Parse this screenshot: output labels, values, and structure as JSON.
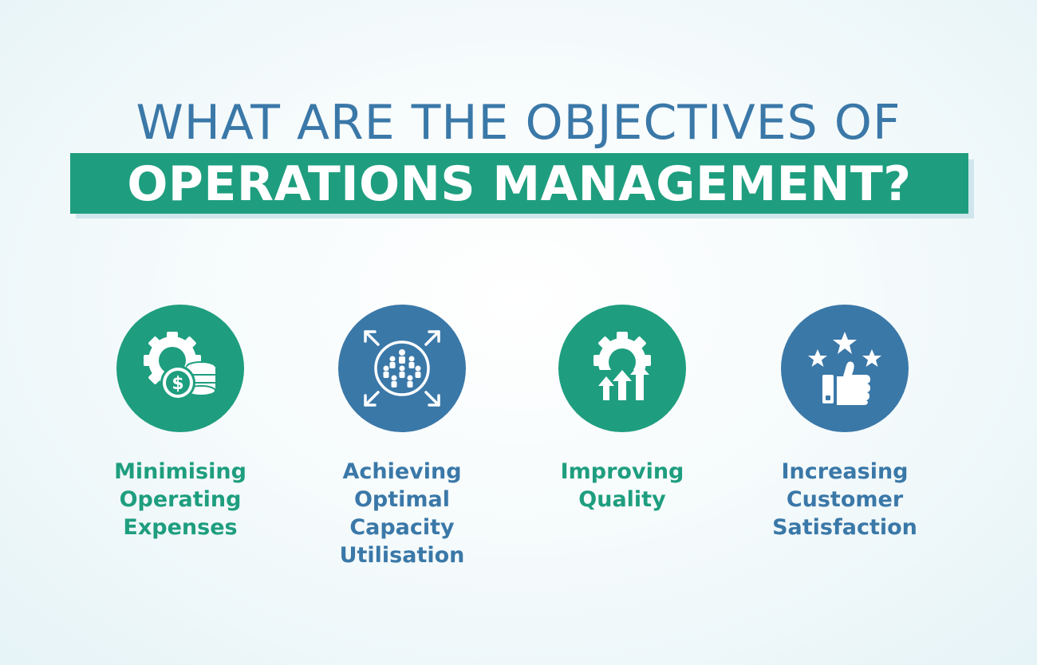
{
  "heading": {
    "line1": "WHAT ARE THE OBJECTIVES OF",
    "line2": "OPERATIONS MANAGEMENT?"
  },
  "colors": {
    "green": "#1e9e7f",
    "blue": "#3a78a8",
    "white": "#ffffff"
  },
  "objectives": [
    {
      "icon": "gear-with-coins-icon",
      "color": "#1e9e7f",
      "label_lines": [
        "Minimising",
        "Operating",
        "Expenses"
      ]
    },
    {
      "icon": "people-expand-arrows-icon",
      "color": "#3a78a8",
      "label_lines": [
        "Achieving",
        "Optimal",
        "Capacity",
        "Utilisation"
      ]
    },
    {
      "icon": "gear-up-arrows-icon",
      "color": "#1e9e7f",
      "label_lines": [
        "Improving",
        "Quality"
      ]
    },
    {
      "icon": "thumbs-up-stars-icon",
      "color": "#3a78a8",
      "label_lines": [
        "Increasing",
        "Customer",
        "Satisfaction"
      ]
    }
  ]
}
